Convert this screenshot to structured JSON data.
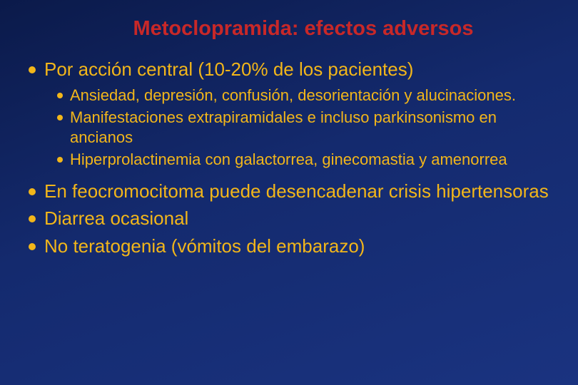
{
  "slide": {
    "title": "Metoclopramida: efectos adversos",
    "title_color": "#c82828",
    "title_fontsize": 29,
    "title_fontweight": "bold",
    "background_gradient_from": "#0b1a4a",
    "background_gradient_to": "#1a3380",
    "bullet_color": "#f2b61a",
    "text_l1_color": "#f2b61a",
    "text_l1_fontsize": 26,
    "text_l2_color": "#f2b61a",
    "text_l2_fontsize": 22,
    "items": [
      {
        "text": "Por acción central (10-20% de los pacientes)",
        "sub": [
          "Ansiedad, depresión, confusión, desorientación y alucinaciones.",
          "Manifestaciones extrapiramidales e incluso parkinsonismo en ancianos",
          "Hiperprolactinemia con galactorrea, ginecomastia y amenorrea"
        ]
      },
      {
        "text": "En feocromocitoma puede desencadenar crisis hipertensoras",
        "sub": []
      },
      {
        "text": "Diarrea ocasional",
        "sub": []
      },
      {
        "text": "No teratogenia (vómitos del embarazo)",
        "sub": []
      }
    ]
  }
}
